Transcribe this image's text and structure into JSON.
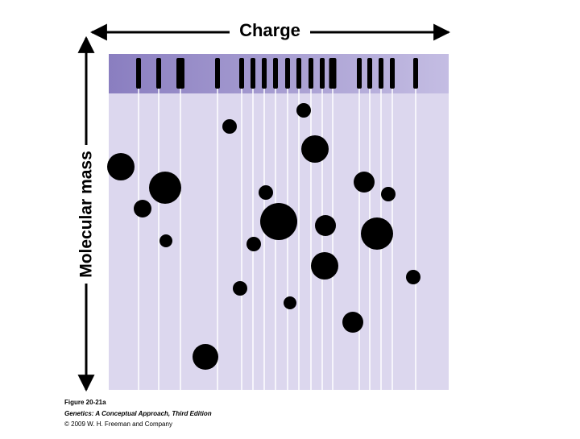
{
  "header": {
    "x_axis_label": "Charge",
    "y_axis_label": "Molecular mass"
  },
  "caption": {
    "figure": "Figure 20-21a",
    "source": "Genetics: A Conceptual Approach, Third Edition",
    "copyright": "© 2009 W. H. Freeman and Company"
  }
}
